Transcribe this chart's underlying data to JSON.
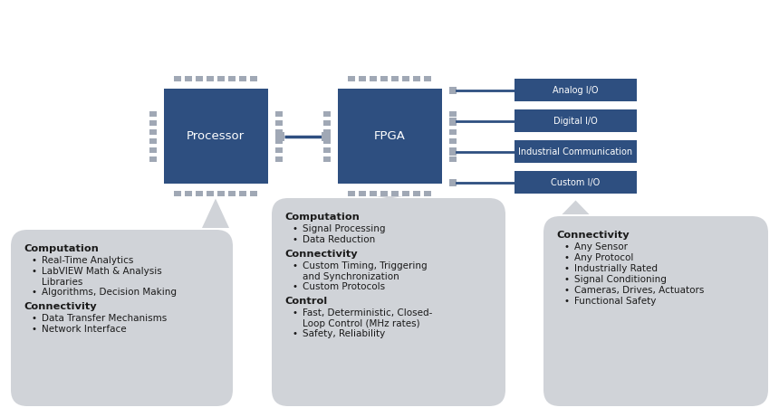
{
  "bg_color": "#ffffff",
  "chip_color": "#2e4f80",
  "chip_text_color": "#ffffff",
  "io_box_color": "#2e4f80",
  "io_text_color": "#ffffff",
  "bubble_color": "#d0d3d8",
  "bubble_text_color": "#1a1a1a",
  "pin_color": "#a0a8b5",
  "line_color": "#2e4f80",
  "bubble_arrow_color": "#b0b5bc",
  "processor_label": "Processor",
  "fpga_label": "FPGA",
  "io_boxes": [
    "Analog I/O",
    "Digital I/O",
    "Industrial Communication",
    "Custom I/O"
  ],
  "bubble1_title1": "Computation",
  "bubble1_items1": [
    "Real-Time Analytics",
    "LabVIEW Math & Analysis\nLibraries",
    "Algorithms, Decision Making"
  ],
  "bubble1_title2": "Connectivity",
  "bubble1_items2": [
    "Data Transfer Mechanisms",
    "Network Interface"
  ],
  "bubble2_title1": "Computation",
  "bubble2_items1": [
    "Signal Processing",
    "Data Reduction"
  ],
  "bubble2_title2": "Connectivity",
  "bubble2_items2": [
    "Custom Timing, Triggering\nand Synchronization",
    "Custom Protocols"
  ],
  "bubble2_title3": "Control",
  "bubble2_items3": [
    "Fast, Deterministic, Closed-\nLoop Control (MHz rates)",
    "Safety, Reliability"
  ],
  "bubble3_title1": "Connectivity",
  "bubble3_items1": [
    "Any Sensor",
    "Any Protocol",
    "Industrially Rated",
    "Signal Conditioning",
    "Cameras, Drives, Actuators",
    "Functional Safety"
  ]
}
